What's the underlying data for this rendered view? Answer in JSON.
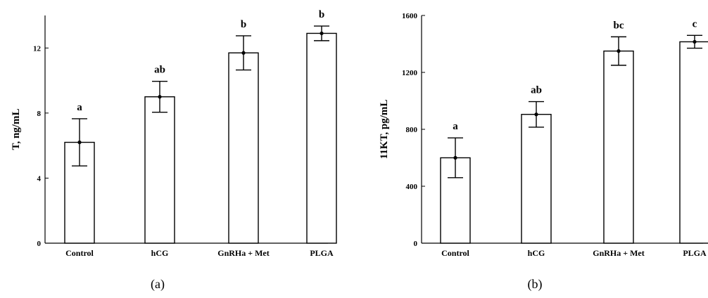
{
  "chart_data": [
    {
      "type": "bar",
      "panel_label": "(a)",
      "ylabel": "T,  ng/mL",
      "categories": [
        "Control",
        "hCG",
        "GnRHa + Met",
        "PLGA"
      ],
      "series": [
        {
          "values": [
            6.2,
            9.0,
            11.7,
            12.9
          ],
          "error": [
            1.45,
            0.95,
            1.05,
            0.45
          ],
          "significance": [
            "a",
            "ab",
            "b",
            "b"
          ]
        }
      ],
      "ylim": [
        0,
        14
      ],
      "yticks": [
        0,
        4,
        8,
        12
      ],
      "grid": false,
      "legend": "none"
    },
    {
      "type": "bar",
      "panel_label": "(b)",
      "ylabel": "11KT,  pg/mL",
      "categories": [
        "Control",
        "hCG",
        "GnRHa + Met",
        "PLGA"
      ],
      "series": [
        {
          "values": [
            600,
            905,
            1350,
            1415
          ],
          "error": [
            140,
            90,
            100,
            45
          ],
          "significance": [
            "a",
            "ab",
            "bc",
            "c"
          ]
        }
      ],
      "ylim": [
        0,
        1600
      ],
      "yticks": [
        0,
        400,
        800,
        1200,
        1600
      ],
      "grid": false,
      "legend": "none"
    }
  ],
  "colors": {
    "bar_fill": "#ffffff",
    "stroke": "#000000"
  }
}
